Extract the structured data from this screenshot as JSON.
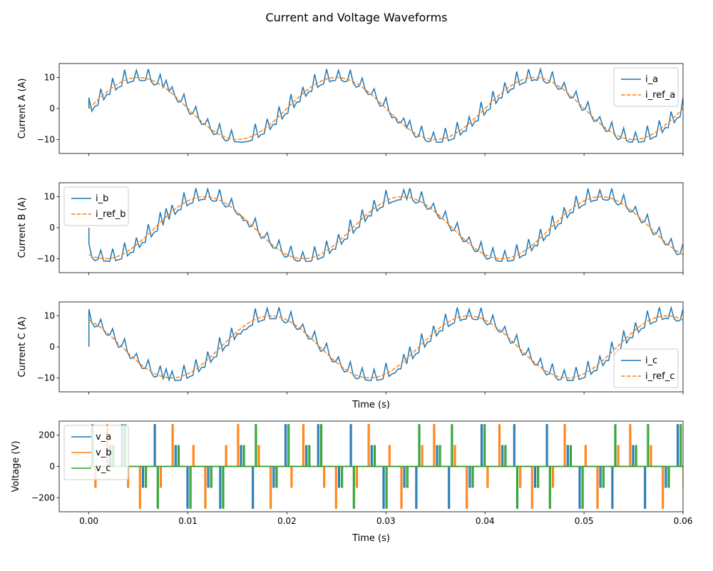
{
  "figure": {
    "title": "Current and Voltage Waveforms"
  },
  "colors": {
    "blue": "#1f77b4",
    "orange": "#ff7f0e",
    "green": "#2ca02c"
  },
  "chart_data": [
    {
      "id": "current-a",
      "type": "line",
      "ylabel": "Current A (A)",
      "xlabel": "",
      "xlim": [
        -0.003,
        0.06
      ],
      "ylim": [
        -14.5,
        14.5
      ],
      "yticks": [
        -10,
        0,
        10
      ],
      "xticks": [
        0.0,
        0.01,
        0.02,
        0.03,
        0.04,
        0.05,
        0.06
      ],
      "show_xticklabels": false,
      "legend": {
        "position": "upper right"
      },
      "series": [
        {
          "name": "i_a",
          "color": "#1f77b4",
          "style": "solid",
          "kind": "hysteresis_current",
          "amplitude": 10,
          "frequency_hz": 50,
          "phase_deg": 0,
          "ripple": 3.5,
          "x_range": [
            0,
            0.06
          ]
        },
        {
          "name": "i_ref_a",
          "color": "#ff7f0e",
          "style": "dashed",
          "kind": "sine",
          "amplitude": 10,
          "frequency_hz": 50,
          "phase_deg": 0,
          "x_range": [
            0,
            0.06
          ]
        }
      ]
    },
    {
      "id": "current-b",
      "type": "line",
      "ylabel": "Current B (A)",
      "xlabel": "",
      "xlim": [
        -0.003,
        0.06
      ],
      "ylim": [
        -14.5,
        14.5
      ],
      "yticks": [
        -10,
        0,
        10
      ],
      "xticks": [
        0.0,
        0.01,
        0.02,
        0.03,
        0.04,
        0.05,
        0.06
      ],
      "show_xticklabels": false,
      "legend": {
        "position": "upper left"
      },
      "series": [
        {
          "name": "i_b",
          "color": "#1f77b4",
          "style": "solid",
          "kind": "hysteresis_current",
          "amplitude": 10,
          "frequency_hz": 50,
          "phase_deg": -120,
          "ripple": 3.5,
          "x_range": [
            0,
            0.06
          ]
        },
        {
          "name": "i_ref_b",
          "color": "#ff7f0e",
          "style": "dashed",
          "kind": "sine",
          "amplitude": 10,
          "frequency_hz": 50,
          "phase_deg": -120,
          "x_range": [
            0,
            0.06
          ]
        }
      ]
    },
    {
      "id": "current-c",
      "type": "line",
      "ylabel": "Current C (A)",
      "xlabel": "Time (s)",
      "xlim": [
        -0.003,
        0.06
      ],
      "ylim": [
        -14.5,
        14.5
      ],
      "yticks": [
        -10,
        0,
        10
      ],
      "xticks": [
        0.0,
        0.01,
        0.02,
        0.03,
        0.04,
        0.05,
        0.06
      ],
      "show_xticklabels": false,
      "legend": {
        "position": "lower right"
      },
      "series": [
        {
          "name": "i_c",
          "color": "#1f77b4",
          "style": "solid",
          "kind": "hysteresis_current",
          "amplitude": 10,
          "frequency_hz": 50,
          "phase_deg": 120,
          "ripple": 3.5,
          "x_range": [
            0,
            0.06
          ]
        },
        {
          "name": "i_ref_c",
          "color": "#ff7f0e",
          "style": "dashed",
          "kind": "sine",
          "amplitude": 10,
          "frequency_hz": 50,
          "phase_deg": 120,
          "x_range": [
            0,
            0.06
          ]
        }
      ]
    },
    {
      "id": "voltage",
      "type": "line",
      "ylabel": "Voltage (V)",
      "xlabel": "Time (s)",
      "xlim": [
        -0.003,
        0.06
      ],
      "ylim": [
        -290,
        290
      ],
      "yticks": [
        -200,
        0,
        200
      ],
      "xticks": [
        0.0,
        0.01,
        0.02,
        0.03,
        0.04,
        0.05,
        0.06
      ],
      "xticklabels": [
        "0.00",
        "0.01",
        "0.02",
        "0.03",
        "0.04",
        "0.05",
        "0.06"
      ],
      "show_xticklabels": true,
      "legend": {
        "position": "upper left"
      },
      "series": [
        {
          "name": "v_a",
          "color": "#1f77b4",
          "style": "solid",
          "kind": "switching_pulses",
          "amplitude": 267,
          "partial_level": 133,
          "x_range": [
            0,
            0.06
          ]
        },
        {
          "name": "v_b",
          "color": "#ff7f0e",
          "style": "solid",
          "kind": "switching_pulses",
          "amplitude": 267,
          "partial_level": 133,
          "x_range": [
            0,
            0.06
          ]
        },
        {
          "name": "v_c",
          "color": "#2ca02c",
          "style": "solid",
          "kind": "switching_pulses",
          "amplitude": 267,
          "partial_level": 133,
          "x_range": [
            0,
            0.06
          ]
        }
      ]
    }
  ]
}
